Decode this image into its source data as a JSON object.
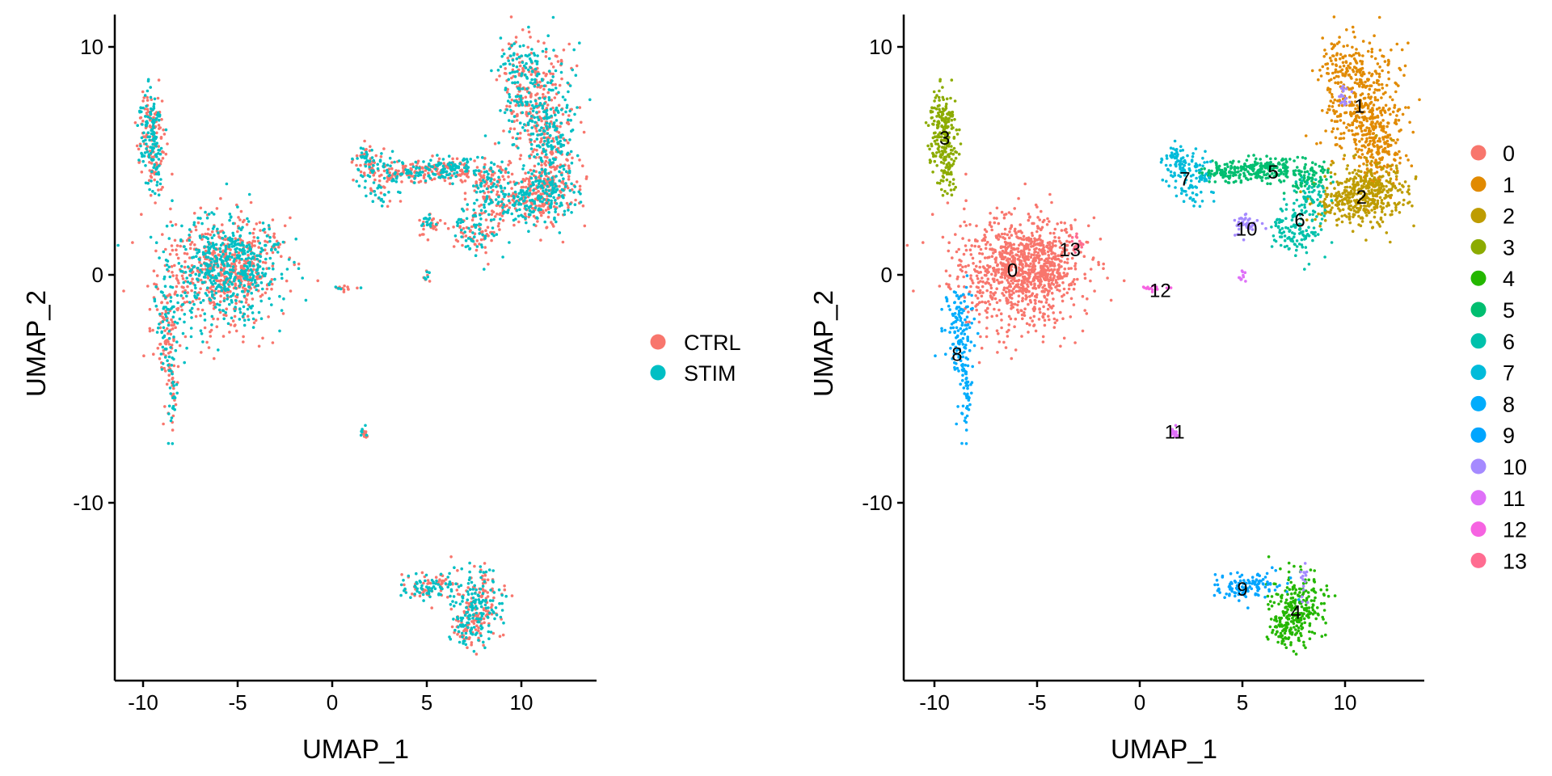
{
  "chart_data": [
    {
      "type": "scatter",
      "xlabel": "UMAP_1",
      "ylabel": "UMAP_2",
      "xlim": [
        -11.5,
        14
      ],
      "ylim": [
        -18,
        11.5
      ],
      "x_ticks": [
        -10,
        -5,
        0,
        5,
        10
      ],
      "y_ticks": [
        -10,
        0,
        10
      ],
      "x_tick_labels": [
        "-10",
        "-5",
        "0",
        "5",
        "10"
      ],
      "y_tick_labels": [
        "-10",
        "0",
        "10"
      ],
      "grid": false,
      "legend_position": "right",
      "colors": {
        "CTRL": "#F8766D",
        "STIM": "#00BFC4"
      },
      "legend": [
        "CTRL",
        "STIM"
      ],
      "series": [
        {
          "name": "CTRL",
          "color": "#F8766D"
        },
        {
          "name": "STIM",
          "color": "#00BFC4"
        }
      ]
    },
    {
      "type": "scatter",
      "xlabel": "UMAP_1",
      "ylabel": "UMAP_2",
      "xlim": [
        -11.5,
        14
      ],
      "ylim": [
        -18,
        11.5
      ],
      "x_ticks": [
        -10,
        -5,
        0,
        5,
        10
      ],
      "y_ticks": [
        -10,
        0,
        10
      ],
      "x_tick_labels": [
        "-10",
        "-5",
        "0",
        "5",
        "10"
      ],
      "y_tick_labels": [
        "-10",
        "0",
        "10"
      ],
      "grid": false,
      "legend_position": "right",
      "legend": [
        "0",
        "1",
        "2",
        "3",
        "4",
        "5",
        "6",
        "7",
        "8",
        "9",
        "10",
        "11",
        "12",
        "13"
      ],
      "cluster_colors": [
        "#F8766D",
        "#E18A00",
        "#BE9C00",
        "#8CAB00",
        "#24B700",
        "#00BE70",
        "#00C1AB",
        "#00BBDA",
        "#00ACFC",
        "#00A5FF",
        "#A58AFF",
        "#DF70F8",
        "#F663E1",
        "#FF6C91"
      ],
      "cluster_labels": [
        {
          "label": "0",
          "x": -6.2,
          "y": 0.2
        },
        {
          "label": "1",
          "x": 10.7,
          "y": 7.4
        },
        {
          "label": "2",
          "x": 10.8,
          "y": 3.4
        },
        {
          "label": "3",
          "x": -9.5,
          "y": 6.0
        },
        {
          "label": "4",
          "x": 7.6,
          "y": -14.8
        },
        {
          "label": "5",
          "x": 6.5,
          "y": 4.5
        },
        {
          "label": "6",
          "x": 7.8,
          "y": 2.4
        },
        {
          "label": "7",
          "x": 2.2,
          "y": 4.2
        },
        {
          "label": "8",
          "x": -8.9,
          "y": -3.5
        },
        {
          "label": "9",
          "x": 5.0,
          "y": -13.8
        },
        {
          "label": "10",
          "x": 5.2,
          "y": 2.0
        },
        {
          "label": "11",
          "x": 1.7,
          "y": -6.9
        },
        {
          "label": "12",
          "x": 1.0,
          "y": -0.7
        },
        {
          "label": "13",
          "x": -3.4,
          "y": 1.1
        }
      ]
    }
  ]
}
